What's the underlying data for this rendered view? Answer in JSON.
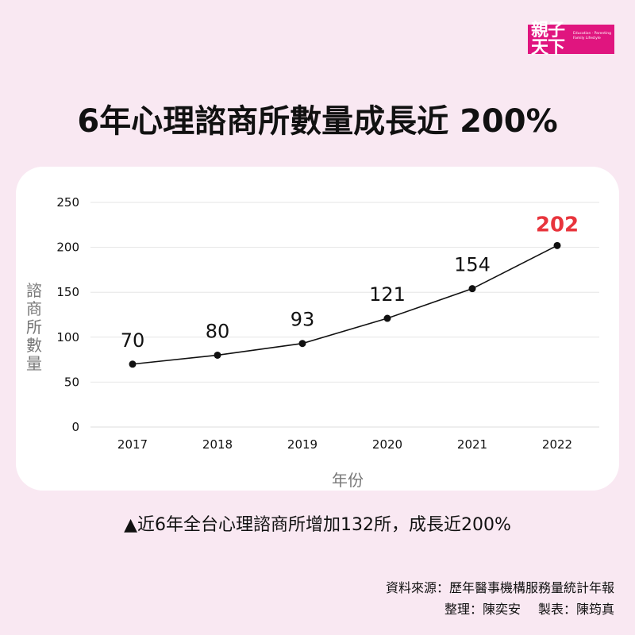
{
  "logo": {
    "main": "親子天下",
    "sub_line1": "Education · Parenting",
    "sub_line2": "Family Lifestyle",
    "color": "#e0157f"
  },
  "title": "6年心理諮商所數量成長近 200%",
  "chart": {
    "y_axis_label_chars": [
      "諮",
      "商",
      "所",
      "數",
      "量"
    ],
    "x_axis_label": "年份"
  },
  "caption": "▲近6年全台心理諮商所增加132所，成長近200%",
  "source": {
    "line1": "資料來源：歷年醫事機構服務量統計年報",
    "compiled": "整理：陳奕安",
    "chart_by": "製表：陳筠真"
  },
  "chart_data": {
    "type": "line",
    "title": "6年心理諮商所數量成長近 200%",
    "xlabel": "年份",
    "ylabel": "諮商所數量",
    "categories": [
      "2017",
      "2018",
      "2019",
      "2020",
      "2021",
      "2022"
    ],
    "values": [
      70,
      80,
      93,
      121,
      154,
      202
    ],
    "data_labels": [
      "70",
      "80",
      "93",
      "121",
      "154",
      "202"
    ],
    "highlight": {
      "index": 5,
      "color": "#e8343c"
    },
    "ylim": [
      0,
      250
    ],
    "yticks": [
      0,
      50,
      100,
      150,
      200,
      250
    ],
    "grid": true,
    "legend": null,
    "line_color": "#111111"
  }
}
